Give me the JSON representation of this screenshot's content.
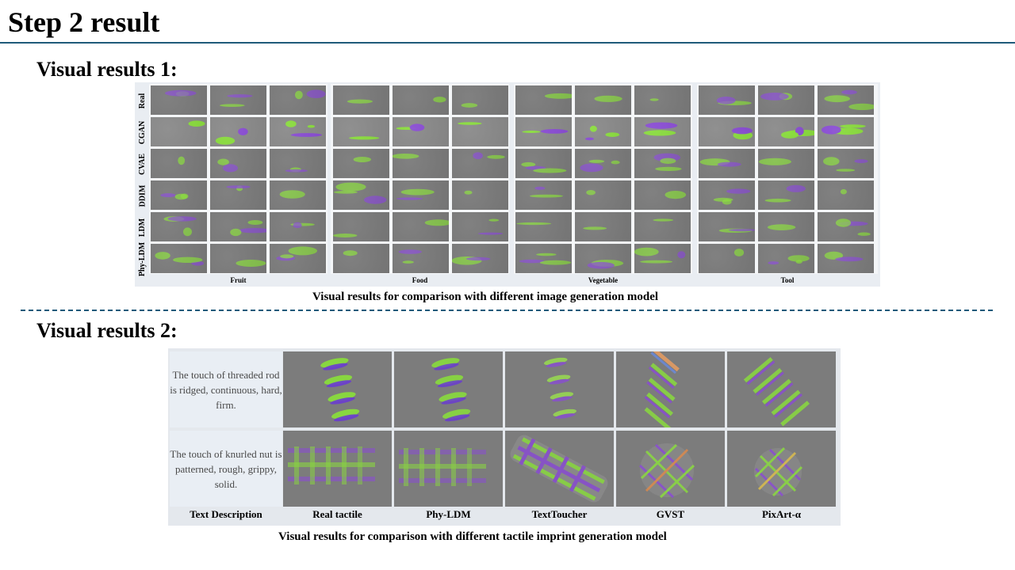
{
  "page": {
    "title": "Step 2 result"
  },
  "section1": {
    "heading": "Visual results 1:",
    "row_labels": [
      "Real",
      "CGAN",
      "CVAE",
      "DDIM",
      "LDM",
      "Phy-LDM"
    ],
    "group_labels": [
      "Fruit",
      "Food",
      "Vegetable",
      "Tool"
    ],
    "caption": "Visual results for comparison with different image generation model"
  },
  "section2": {
    "heading": "Visual results 2:",
    "descriptions": [
      "The touch of threaded rod is ridged, continuous, hard, firm.",
      "The touch of knurled nut is patterned, rough, grippy, solid."
    ],
    "column_labels": [
      "Text Description",
      "Real tactile",
      "Phy-LDM",
      "TextToucher",
      "GVST",
      "PixArt-α"
    ],
    "caption": "Visual results for comparison with different tactile imprint generation model"
  },
  "colors": {
    "rule": "#1f5a7a",
    "tactile_background": "#7a7a7a",
    "green": "#7cdc2a",
    "purple": "#7a3cc8"
  }
}
